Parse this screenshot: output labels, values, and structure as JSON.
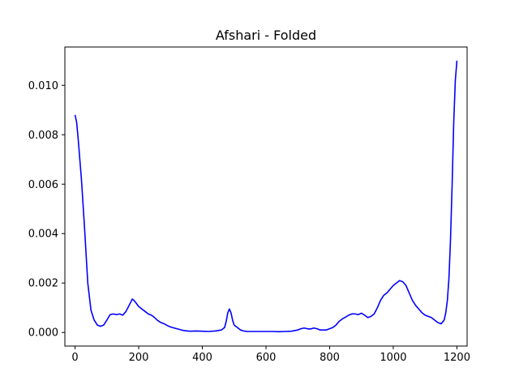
{
  "chart_data": {
    "type": "line",
    "title": "Afshari - Folded",
    "xlabel": "",
    "ylabel": "",
    "xlim": [
      -32,
      1232
    ],
    "ylim": [
      -0.00055,
      0.01155
    ],
    "x_ticks": [
      0,
      200,
      400,
      600,
      800,
      1000,
      1200
    ],
    "x_tick_labels": [
      "0",
      "200",
      "400",
      "600",
      "800",
      "1000",
      "1200"
    ],
    "y_ticks": [
      0.0,
      0.002,
      0.004,
      0.006,
      0.008,
      0.01
    ],
    "y_tick_labels": [
      "0.000",
      "0.002",
      "0.004",
      "0.006",
      "0.008",
      "0.010"
    ],
    "grid": false,
    "series": [
      {
        "color": "#0000ff",
        "x": [
          0,
          5,
          10,
          20,
          30,
          40,
          50,
          60,
          70,
          80,
          90,
          100,
          110,
          120,
          130,
          140,
          150,
          160,
          170,
          180,
          185,
          190,
          200,
          210,
          220,
          230,
          240,
          250,
          260,
          270,
          280,
          290,
          300,
          320,
          340,
          360,
          380,
          400,
          420,
          440,
          460,
          470,
          475,
          480,
          485,
          490,
          495,
          500,
          510,
          520,
          530,
          540,
          560,
          580,
          600,
          620,
          640,
          660,
          680,
          700,
          710,
          720,
          730,
          740,
          750,
          760,
          770,
          780,
          790,
          800,
          810,
          820,
          830,
          840,
          850,
          860,
          870,
          880,
          890,
          900,
          910,
          920,
          930,
          940,
          950,
          960,
          970,
          980,
          990,
          1000,
          1010,
          1020,
          1030,
          1040,
          1050,
          1060,
          1070,
          1080,
          1090,
          1100,
          1110,
          1120,
          1130,
          1140,
          1150,
          1160,
          1165,
          1170,
          1175,
          1180,
          1185,
          1190,
          1195,
          1200
        ],
        "y": [
          0.0088,
          0.0085,
          0.0078,
          0.0062,
          0.0042,
          0.002,
          0.0009,
          0.0005,
          0.0003,
          0.00025,
          0.0003,
          0.0005,
          0.00072,
          0.00075,
          0.00072,
          0.00075,
          0.0007,
          0.00085,
          0.0011,
          0.00135,
          0.0013,
          0.00122,
          0.00105,
          0.00095,
          0.00085,
          0.00075,
          0.0007,
          0.0006,
          0.00048,
          0.0004,
          0.00035,
          0.00028,
          0.00022,
          0.00015,
          8e-05,
          5e-05,
          6e-05,
          5e-05,
          4e-05,
          6e-05,
          0.0001,
          0.0002,
          0.00045,
          0.0008,
          0.00095,
          0.0008,
          0.0005,
          0.0003,
          0.0002,
          0.0001,
          6e-05,
          4e-05,
          4e-05,
          4e-05,
          4e-05,
          4e-05,
          3e-05,
          4e-05,
          5e-05,
          0.0001,
          0.00015,
          0.00018,
          0.00015,
          0.00014,
          0.00018,
          0.00015,
          0.0001,
          0.0001,
          0.0001,
          0.00015,
          0.0002,
          0.0003,
          0.00045,
          0.00055,
          0.00062,
          0.0007,
          0.00075,
          0.00075,
          0.00072,
          0.00078,
          0.0007,
          0.0006,
          0.00065,
          0.00075,
          0.001,
          0.0013,
          0.0015,
          0.0016,
          0.00175,
          0.0019,
          0.002,
          0.0021,
          0.00205,
          0.0019,
          0.0016,
          0.0013,
          0.0011,
          0.00095,
          0.0008,
          0.0007,
          0.00065,
          0.0006,
          0.0005,
          0.0004,
          0.00035,
          0.0005,
          0.0008,
          0.0013,
          0.0022,
          0.0038,
          0.006,
          0.0085,
          0.0102,
          0.011
        ]
      }
    ]
  }
}
